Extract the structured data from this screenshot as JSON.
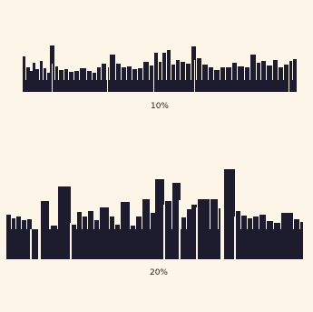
{
  "captions": {
    "top": "10%",
    "bottom": "20%"
  },
  "colors": {
    "background": "#fcf5e8",
    "skyline": "#1d1c2e",
    "text": "#222222"
  }
}
